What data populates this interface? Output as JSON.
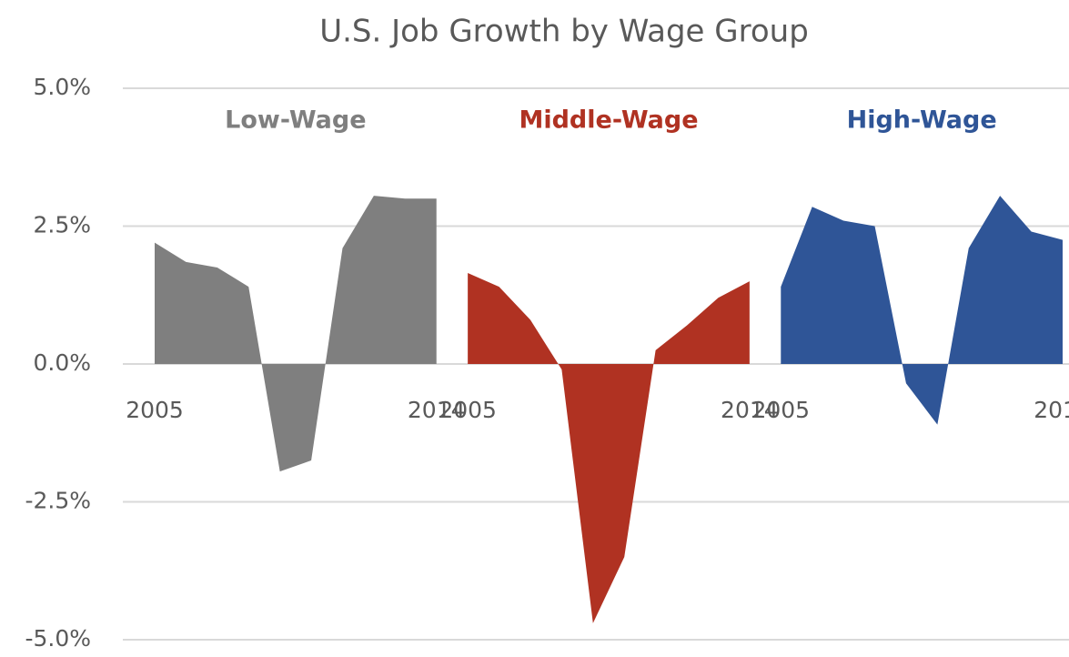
{
  "chart_data": {
    "type": "area",
    "title": "U.S. Job Growth by Wage Group",
    "categories": [
      "2005",
      null,
      null,
      null,
      null,
      null,
      null,
      null,
      null,
      "2014"
    ],
    "series": [
      {
        "name": "Low-Wage",
        "color": "#7f7f7f",
        "values": [
          2.2,
          1.85,
          1.75,
          1.4,
          -1.95,
          -1.75,
          2.1,
          3.05,
          3.0,
          3.0
        ]
      },
      {
        "name": "Middle-Wage",
        "color": "#b03222",
        "values": [
          1.65,
          1.4,
          0.8,
          -0.1,
          -4.7,
          -3.5,
          0.25,
          0.7,
          1.2,
          1.5
        ]
      },
      {
        "name": "High-Wage",
        "color": "#2f5597",
        "values": [
          1.4,
          2.85,
          2.6,
          2.5,
          -0.35,
          -1.1,
          2.1,
          3.05,
          2.4,
          2.25
        ]
      }
    ],
    "ylim": [
      -5,
      5
    ],
    "yticks": [
      {
        "value": -5,
        "label": "-5.0%"
      },
      {
        "value": -2.5,
        "label": "-2.5%"
      },
      {
        "value": 0,
        "label": "0.0%"
      },
      {
        "value": 2.5,
        "label": "2.5%"
      },
      {
        "value": 5,
        "label": "5.0%"
      }
    ],
    "grid": true
  }
}
